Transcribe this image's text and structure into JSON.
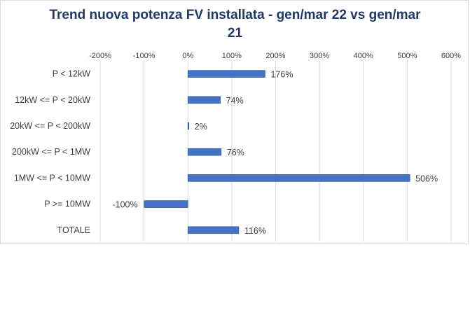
{
  "chart_data": {
    "type": "bar",
    "orientation": "horizontal",
    "title_lines": [
      "Trend nuova potenza FV installata  - gen/mar 22 vs gen/mar",
      "21"
    ],
    "categories": [
      "P < 12kW",
      "12kW <= P < 20kW",
      "20kW <= P < 200kW",
      "200kW <= P < 1MW",
      "1MW <= P < 10MW",
      "P >= 10MW",
      "TOTALE"
    ],
    "values": [
      176,
      74,
      2,
      76,
      506,
      -100,
      116
    ],
    "value_labels": [
      "176%",
      "74%",
      "2%",
      "76%",
      "506%",
      "-100%",
      "116%"
    ],
    "x_ticks": [
      -200,
      -100,
      0,
      100,
      200,
      300,
      400,
      500,
      600
    ],
    "x_tick_labels": [
      "-200%",
      "-100%",
      "0%",
      "100%",
      "200%",
      "300%",
      "400%",
      "500%",
      "600%"
    ],
    "xlim": [
      -200,
      600
    ],
    "x_axis_position": "top",
    "grid": true,
    "bar_color": "#4472c4",
    "title_color": "#1f3864"
  }
}
